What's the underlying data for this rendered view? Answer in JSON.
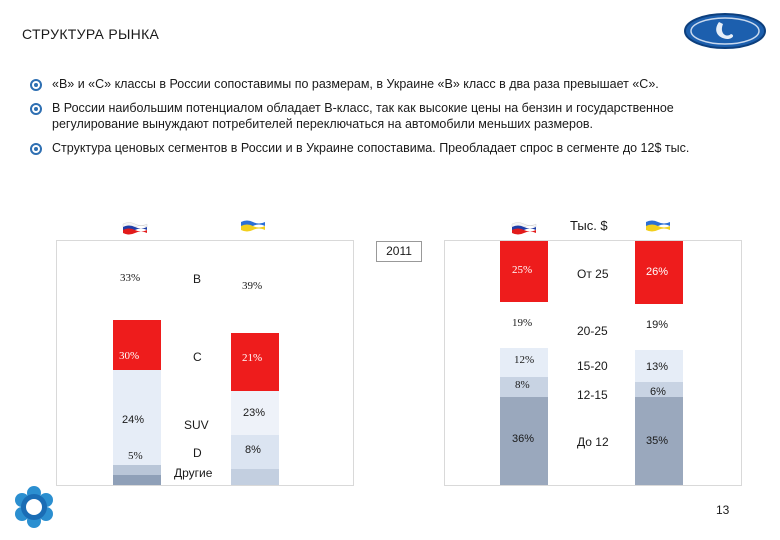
{
  "title": "СТРУКТУРА РЫНКА",
  "logo_icon": "lada-logo-icon",
  "bullets": [
    "«B» и «C» классы в России сопоставимы по размерам, в Украине «B» класс в два раза превышает «C».",
    "В России наибольшим потенциалом обладает В-класс, так как высокие цены на бензин и государственное регулирование вынуждают потребителей переключаться на автомобили меньших размеров.",
    "Структура ценовых сегментов в России и в Украине сопоставима. Преобладает спрос в сегменте до 12$ тыс."
  ],
  "year": "2011",
  "unit_label": "Тыс. $",
  "left_chart": {
    "segments": [
      "B",
      "C",
      "SUV",
      "D",
      "Другие"
    ],
    "russia": {
      "flag": "russia-flag-icon",
      "values": [
        "33%",
        "30%",
        "24%",
        "5%",
        ""
      ]
    },
    "ukraine": {
      "flag": "ukraine-flag-icon",
      "values": [
        "39%",
        "21%",
        "23%",
        "8%",
        ""
      ]
    }
  },
  "right_chart": {
    "segments": [
      "От 25",
      "20-25",
      "15-20",
      "12-15",
      "До 12"
    ],
    "russia": {
      "flag": "russia-flag-icon",
      "values": [
        "25%",
        "19%",
        "12%",
        "8%",
        "36%"
      ]
    },
    "ukraine": {
      "flag": "ukraine-flag-icon",
      "values": [
        "26%",
        "19%",
        "13%",
        "6%",
        "35%"
      ]
    }
  },
  "colors": {
    "accent_red": "#ee1c1c",
    "light_blue": "#e8eef7",
    "steel_blue": "#9aa8bd",
    "bullet_blue": "#2e6fb2"
  },
  "page_number": "13",
  "footer_icon": "flower-logo-icon"
}
